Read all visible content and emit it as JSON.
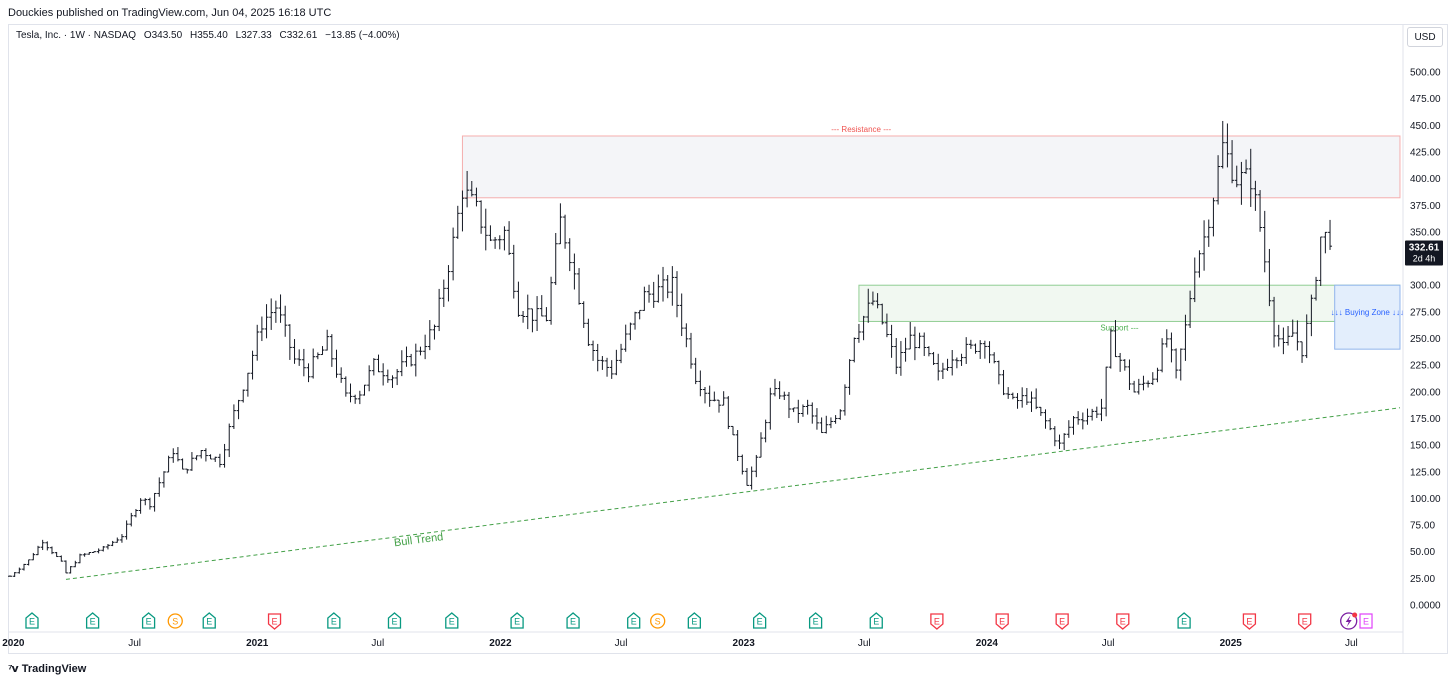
{
  "header": {
    "published": "Douckies published on TradingView.com, Jun 04, 2025 16:18 UTC"
  },
  "legend": {
    "symbol": "Tesla, Inc. · 1W · NASDAQ",
    "open": "O343.50",
    "high": "H355.40",
    "low": "L327.33",
    "close": "C332.61",
    "change": "−13.85 (−4.00%)"
  },
  "currency": "USD",
  "price_tag": {
    "price": "332.61",
    "countdown": "2d 4h"
  },
  "footer": {
    "brand": "TradingView"
  },
  "colors": {
    "resistance": "#ef5350",
    "support": "#4caf50",
    "buying_zone": "#2962ff",
    "bull_trend": "#43a047",
    "earnings_positive": "#089981",
    "earnings_negative": "#f23645",
    "split": "#ff9800",
    "future": "#e040fb",
    "bars": "#131722"
  },
  "chart_data": {
    "type": "ohlc-bar",
    "interval": "1W",
    "ylim": [
      0,
      520
    ],
    "yticks": [
      "500.00",
      "475.00",
      "450.00",
      "425.00",
      "400.00",
      "375.00",
      "350.00",
      "325.00",
      "300.00",
      "275.00",
      "250.00",
      "225.00",
      "200.00",
      "175.00",
      "150.00",
      "125.00",
      "100.00",
      "75.00",
      "50.00",
      "25.00",
      "0.0000"
    ],
    "time_labels": [
      "2020",
      "Jul",
      "2021",
      "Jul",
      "2022",
      "Jul",
      "2023",
      "Jul",
      "2024",
      "Jul",
      "2025",
      "Jul"
    ],
    "time_label_dates": [
      "2020-01-01",
      "2020-07-01",
      "2021-01-01",
      "2021-07-01",
      "2022-01-01",
      "2022-07-01",
      "2023-01-01",
      "2023-07-01",
      "2024-01-01",
      "2024-07-01",
      "2025-01-01",
      "2025-07-01"
    ],
    "x_start": "2019-12-27",
    "x_end": "2025-09-12",
    "price_anchors": [
      [
        "2019-12-27",
        27
      ],
      [
        "2020-01-24",
        42
      ],
      [
        "2020-02-14",
        60
      ],
      [
        "2020-03-13",
        40
      ],
      [
        "2020-03-20",
        30
      ],
      [
        "2020-04-10",
        46
      ],
      [
        "2020-05-15",
        53
      ],
      [
        "2020-06-12",
        65
      ],
      [
        "2020-07-10",
        100
      ],
      [
        "2020-07-24",
        95
      ],
      [
        "2020-08-28",
        145
      ],
      [
        "2020-09-11",
        125
      ],
      [
        "2020-10-09",
        145
      ],
      [
        "2020-11-06",
        135
      ],
      [
        "2020-11-27",
        180
      ],
      [
        "2020-12-18",
        220
      ],
      [
        "2021-01-08",
        265
      ],
      [
        "2021-01-29",
        280
      ],
      [
        "2021-02-26",
        230
      ],
      [
        "2021-03-19",
        220
      ],
      [
        "2021-04-16",
        245
      ],
      [
        "2021-05-14",
        195
      ],
      [
        "2021-06-04",
        200
      ],
      [
        "2021-06-25",
        225
      ],
      [
        "2021-07-23",
        215
      ],
      [
        "2021-08-27",
        235
      ],
      [
        "2021-09-24",
        260
      ],
      [
        "2021-10-22",
        340
      ],
      [
        "2021-11-05",
        390
      ],
      [
        "2021-11-26",
        370
      ],
      [
        "2021-12-17",
        340
      ],
      [
        "2022-01-07",
        350
      ],
      [
        "2022-01-28",
        280
      ],
      [
        "2022-02-25",
        270
      ],
      [
        "2022-03-11",
        270
      ],
      [
        "2022-04-01",
        360
      ],
      [
        "2022-04-15",
        330
      ],
      [
        "2022-05-13",
        250
      ],
      [
        "2022-05-27",
        230
      ],
      [
        "2022-06-17",
        220
      ],
      [
        "2022-07-08",
        250
      ],
      [
        "2022-08-05",
        290
      ],
      [
        "2022-08-26",
        295
      ],
      [
        "2022-09-16",
        300
      ],
      [
        "2022-09-30",
        265
      ],
      [
        "2022-10-21",
        215
      ],
      [
        "2022-11-11",
        195
      ],
      [
        "2022-12-02",
        190
      ],
      [
        "2022-12-16",
        155
      ],
      [
        "2023-01-06",
        115
      ],
      [
        "2023-01-20",
        135
      ],
      [
        "2023-02-10",
        195
      ],
      [
        "2023-02-24",
        200
      ],
      [
        "2023-03-17",
        180
      ],
      [
        "2023-04-07",
        185
      ],
      [
        "2023-04-28",
        160
      ],
      [
        "2023-05-26",
        185
      ],
      [
        "2023-06-16",
        255
      ],
      [
        "2023-07-14",
        285
      ],
      [
        "2023-07-28",
        265
      ],
      [
        "2023-08-18",
        225
      ],
      [
        "2023-09-08",
        250
      ],
      [
        "2023-09-22",
        245
      ],
      [
        "2023-10-20",
        215
      ],
      [
        "2023-11-10",
        235
      ],
      [
        "2023-12-08",
        240
      ],
      [
        "2023-12-29",
        250
      ],
      [
        "2024-01-19",
        210
      ],
      [
        "2024-02-09",
        190
      ],
      [
        "2024-03-01",
        195
      ],
      [
        "2024-03-29",
        172
      ],
      [
        "2024-04-19",
        150
      ],
      [
        "2024-05-10",
        175
      ],
      [
        "2024-05-31",
        178
      ],
      [
        "2024-06-21",
        185
      ],
      [
        "2024-07-05",
        250
      ],
      [
        "2024-07-19",
        230
      ],
      [
        "2024-08-09",
        200
      ],
      [
        "2024-09-06",
        215
      ],
      [
        "2024-09-27",
        250
      ],
      [
        "2024-10-11",
        215
      ],
      [
        "2024-10-25",
        260
      ],
      [
        "2024-11-08",
        320
      ],
      [
        "2024-11-22",
        345
      ],
      [
        "2024-12-06",
        385
      ],
      [
        "2024-12-20",
        430
      ],
      [
        "2025-01-10",
        400
      ],
      [
        "2025-01-31",
        400
      ],
      [
        "2025-02-14",
        355
      ],
      [
        "2025-03-07",
        260
      ],
      [
        "2025-03-21",
        240
      ],
      [
        "2025-04-04",
        255
      ],
      [
        "2025-04-18",
        240
      ],
      [
        "2025-05-02",
        280
      ],
      [
        "2025-05-16",
        345
      ],
      [
        "2025-05-30",
        346
      ],
      [
        "2025-06-04",
        332.61
      ]
    ],
    "annotations": {
      "resistance": {
        "label": "--- Resistance ---",
        "from": "2021-11-05",
        "to": "2025-09-12",
        "low": 382,
        "high": 440
      },
      "support": {
        "label": "Support ---",
        "from": "2023-06-23",
        "to": "2025-09-12",
        "low": 266,
        "high": 300
      },
      "buying_zone": {
        "label": "↓↓↓ Buying Zone ↓↓↓",
        "from": "2025-06-06",
        "to": "2025-09-12",
        "low": 240,
        "high": 300
      },
      "bull_trend": {
        "label": "Bull Trend",
        "from": [
          "2020-03-20",
          24
        ],
        "to": [
          "2025-09-12",
          185
        ]
      }
    },
    "events": [
      {
        "date": "2020-01-29",
        "type": "E",
        "sign": "positive"
      },
      {
        "date": "2020-04-29",
        "type": "E",
        "sign": "positive"
      },
      {
        "date": "2020-07-22",
        "type": "E",
        "sign": "positive"
      },
      {
        "date": "2020-08-31",
        "type": "S",
        "sign": "split"
      },
      {
        "date": "2020-10-21",
        "type": "E",
        "sign": "positive"
      },
      {
        "date": "2021-01-27",
        "type": "E",
        "sign": "negative"
      },
      {
        "date": "2021-04-26",
        "type": "E",
        "sign": "positive"
      },
      {
        "date": "2021-07-26",
        "type": "E",
        "sign": "positive"
      },
      {
        "date": "2021-10-20",
        "type": "E",
        "sign": "positive"
      },
      {
        "date": "2022-01-26",
        "type": "E",
        "sign": "positive"
      },
      {
        "date": "2022-04-20",
        "type": "E",
        "sign": "positive"
      },
      {
        "date": "2022-07-20",
        "type": "E",
        "sign": "positive"
      },
      {
        "date": "2022-08-25",
        "type": "S",
        "sign": "split"
      },
      {
        "date": "2022-10-19",
        "type": "E",
        "sign": "positive"
      },
      {
        "date": "2023-01-25",
        "type": "E",
        "sign": "positive"
      },
      {
        "date": "2023-04-19",
        "type": "E",
        "sign": "positive"
      },
      {
        "date": "2023-07-19",
        "type": "E",
        "sign": "positive"
      },
      {
        "date": "2023-10-18",
        "type": "E",
        "sign": "negative"
      },
      {
        "date": "2024-01-24",
        "type": "E",
        "sign": "negative"
      },
      {
        "date": "2024-04-23",
        "type": "E",
        "sign": "negative"
      },
      {
        "date": "2024-07-23",
        "type": "E",
        "sign": "negative"
      },
      {
        "date": "2024-10-23",
        "type": "E",
        "sign": "positive"
      },
      {
        "date": "2025-01-29",
        "type": "E",
        "sign": "negative"
      },
      {
        "date": "2025-04-22",
        "type": "E",
        "sign": "negative"
      },
      {
        "date": "2025-07-23",
        "type": "E",
        "sign": "future"
      }
    ]
  }
}
